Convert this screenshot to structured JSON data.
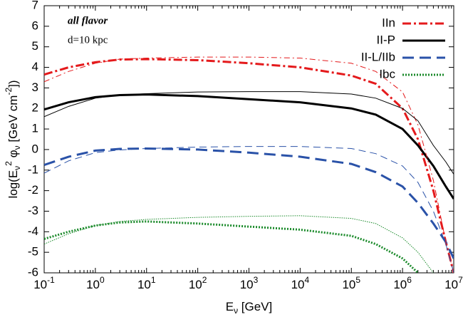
{
  "chart_data": {
    "type": "line",
    "annotations": [
      "all flavor",
      "d=10 kpc"
    ],
    "xlabel": [
      "E",
      "ν",
      " [GeV]"
    ],
    "ylabel": [
      "log(E",
      "ν",
      "2",
      " φ",
      "ν",
      " [GeV cm",
      "-2",
      "])"
    ],
    "xscale": "log",
    "xlim": [
      0.1,
      10000000
    ],
    "ylim": [
      -6,
      7
    ],
    "xticks": [
      {
        "value": 0.1,
        "base": "10",
        "exp": "-1"
      },
      {
        "value": 1,
        "base": "10",
        "exp": "0"
      },
      {
        "value": 10,
        "base": "10",
        "exp": "1"
      },
      {
        "value": 100,
        "base": "10",
        "exp": "2"
      },
      {
        "value": 1000,
        "base": "10",
        "exp": "3"
      },
      {
        "value": 10000,
        "base": "10",
        "exp": "4"
      },
      {
        "value": 100000,
        "base": "10",
        "exp": "5"
      },
      {
        "value": 1000000,
        "base": "10",
        "exp": "6"
      },
      {
        "value": 10000000,
        "base": "10",
        "exp": "7"
      }
    ],
    "yticks": [
      -6,
      -5,
      -4,
      -3,
      -2,
      -1,
      0,
      1,
      2,
      3,
      4,
      5,
      6,
      7
    ],
    "legend": "upper right",
    "x": [
      0.1,
      0.3,
      1,
      3,
      10,
      100,
      1000,
      10000,
      100000,
      300000,
      1000000,
      2000000,
      4000000,
      7000000,
      10000000
    ],
    "series": [
      {
        "name": "IIn",
        "color": "#e41a1c",
        "dash": "dashdot",
        "width": 3,
        "values": [
          3.65,
          4.0,
          4.25,
          4.38,
          4.4,
          4.35,
          4.2,
          4.0,
          3.6,
          3.2,
          2.0,
          0.5,
          -2,
          -4.5,
          -6
        ]
      },
      {
        "name": "II-P",
        "color": "#000000",
        "dash": "solid",
        "width": 3,
        "values": [
          1.95,
          2.3,
          2.55,
          2.65,
          2.68,
          2.6,
          2.45,
          2.3,
          2.0,
          1.7,
          1.0,
          0.2,
          -0.8,
          -1.8,
          -2.4
        ]
      },
      {
        "name": "II-L/IIb",
        "color": "#2a52a8",
        "dash": "dash",
        "width": 3,
        "values": [
          -0.75,
          -0.35,
          -0.05,
          0.03,
          0.05,
          0.0,
          -0.15,
          -0.35,
          -0.7,
          -1.1,
          -1.8,
          -2.6,
          -3.6,
          -4.5,
          -5.3
        ]
      },
      {
        "name": "Ibc",
        "color": "#1a8a2a",
        "dash": "dot",
        "width": 3,
        "values": [
          -4.35,
          -4.0,
          -3.7,
          -3.55,
          -3.5,
          -3.6,
          -3.75,
          -3.9,
          -4.2,
          -4.6,
          -5.3,
          -6,
          null,
          null,
          null
        ]
      },
      {
        "color": "#e41a1c",
        "dash": "dashdot",
        "width": 1,
        "values": [
          3.3,
          3.8,
          4.2,
          4.4,
          4.45,
          4.5,
          4.5,
          4.45,
          4.2,
          3.8,
          2.8,
          1.2,
          -1.5,
          -4.5,
          -6
        ]
      },
      {
        "color": "#000000",
        "dash": "solid",
        "width": 1,
        "values": [
          1.6,
          2.1,
          2.5,
          2.65,
          2.72,
          2.8,
          2.82,
          2.82,
          2.7,
          2.5,
          2.0,
          1.4,
          0.2,
          -0.6,
          -1.2
        ]
      },
      {
        "color": "#2a52a8",
        "dash": "dash",
        "width": 1,
        "values": [
          -1.15,
          -0.55,
          -0.15,
          -0.02,
          0.05,
          0.12,
          0.15,
          0.15,
          0.05,
          -0.2,
          -0.8,
          -1.6,
          -3.0,
          -4.6,
          -6
        ]
      },
      {
        "color": "#1a8a2a",
        "dash": "dot",
        "width": 1,
        "values": [
          -4.6,
          -4.1,
          -3.7,
          -3.5,
          -3.4,
          -3.3,
          -3.25,
          -3.22,
          -3.35,
          -3.6,
          -4.3,
          -5.0,
          -6.0,
          null,
          null
        ]
      }
    ]
  }
}
